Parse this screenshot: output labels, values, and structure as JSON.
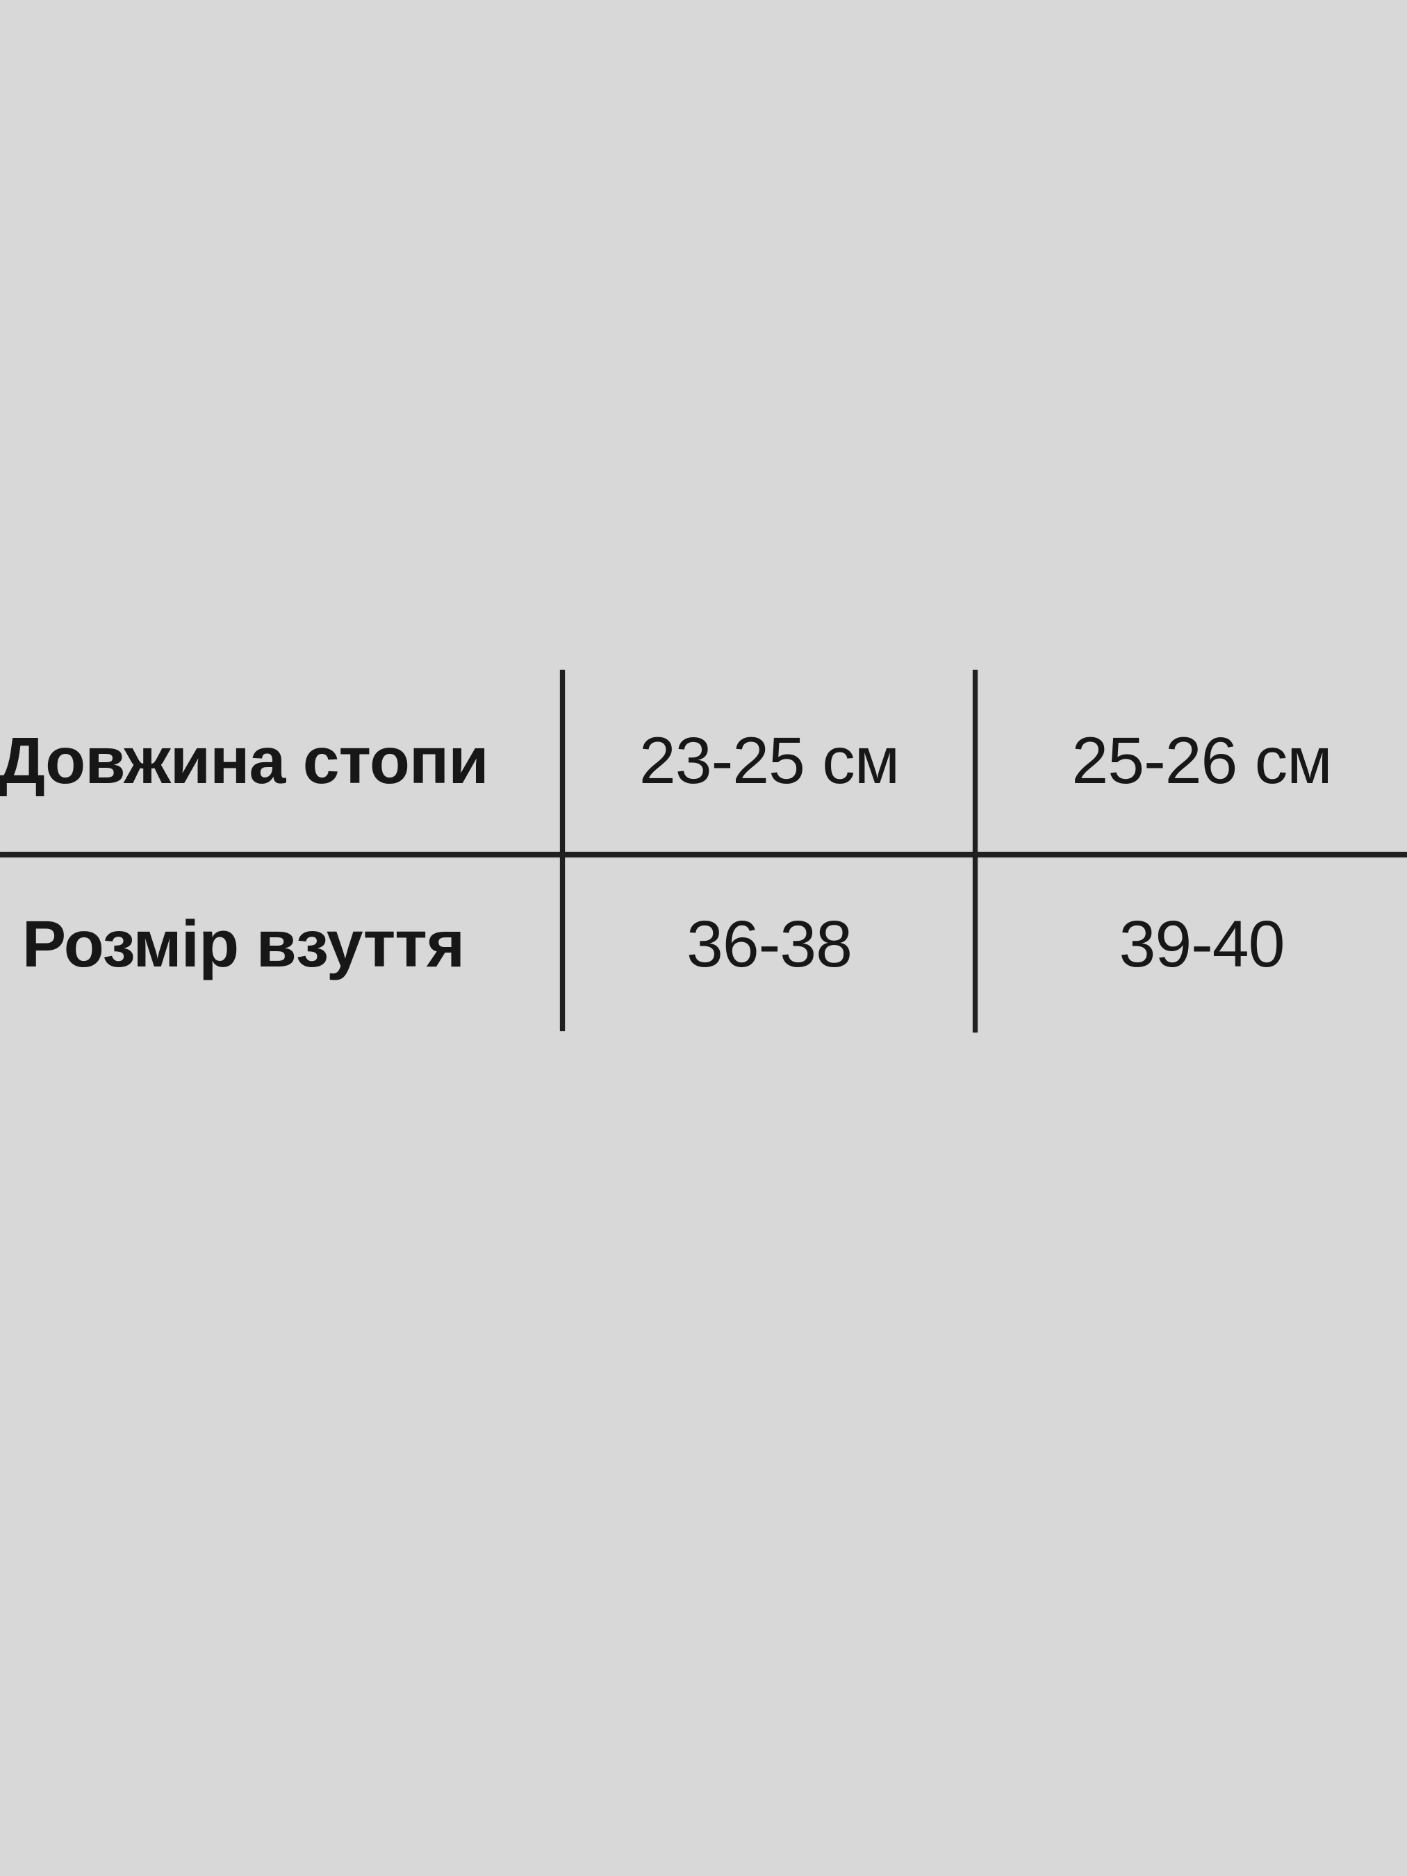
{
  "image": {
    "background_color": "#d8d8d8",
    "line_color": "#202020",
    "text_color": "#171717"
  },
  "size_table": {
    "row1": {
      "label": "Довжина стопи",
      "value1": "23-25 см",
      "value2": "25-26 см"
    },
    "row2": {
      "label": "Розмір взуття",
      "value1": "36-38",
      "value2": "39-40"
    }
  },
  "chart_data": {
    "type": "table",
    "rows": [
      [
        "Довжина стопи",
        "23-25 см",
        "25-26 см"
      ],
      [
        "Розмір взуття",
        "36-38",
        "39-40"
      ]
    ],
    "layout": {
      "n_rows": 2,
      "n_cols": 3,
      "grid_lines": "two vertical column dividers between cols, one full-width horizontal divider between rows",
      "legend": "none",
      "title": "none"
    }
  }
}
